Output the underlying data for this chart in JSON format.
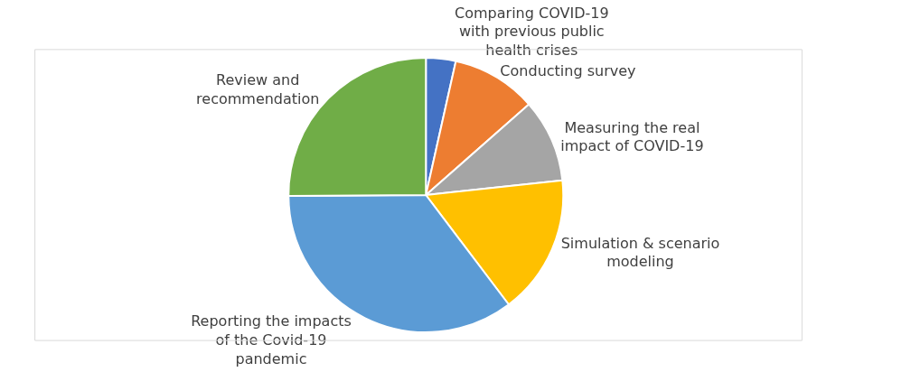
{
  "chart_data": {
    "type": "pie",
    "categories": [
      "Comparing COVID-19 with previous public health crises",
      "Conducting survey",
      "Measuring the real impact of COVID-19",
      "Simulation & scenario modeling",
      "Reporting the impacts of the Covid-19 pandemic",
      "Review and recommendation"
    ],
    "values": [
      3.5,
      10,
      9.8,
      16.4,
      35.2,
      25.1
    ],
    "colors": [
      "#4472c4",
      "#ed7d31",
      "#a5a5a5",
      "#ffc000",
      "#5b9bd5",
      "#70ad47"
    ],
    "legend": false
  }
}
